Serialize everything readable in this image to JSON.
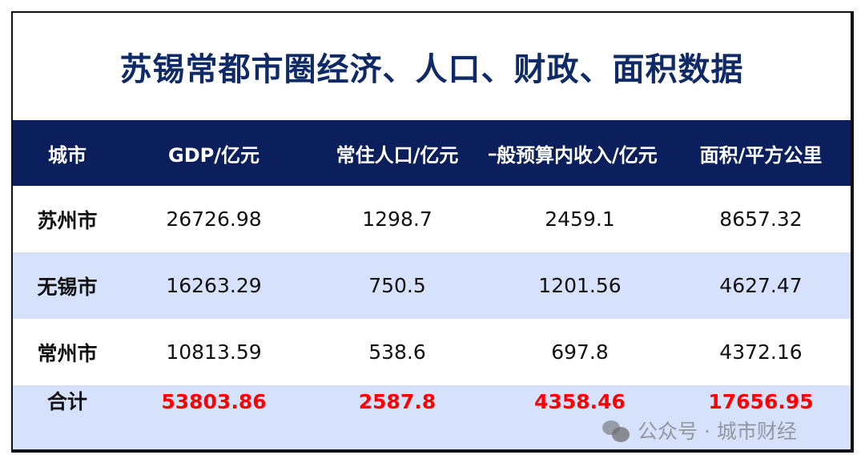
{
  "title": "苏锡常都市圈经济、人口、财政、面积数据",
  "headers": [
    "城市",
    "GDP/亿元",
    "常住人口/亿元",
    "一般预算内收入/亿元",
    "面积/平方公里"
  ],
  "rows": [
    {
      "city": "苏州市",
      "gdp": "26726.98",
      "population": "1298.7",
      "budget": "2459.1",
      "area": "8657.32"
    },
    {
      "city": "无锡市",
      "gdp": "16263.29",
      "population": "750.5",
      "budget": "1201.56",
      "area": "4627.47"
    },
    {
      "city": "常州市",
      "gdp": "10813.59",
      "population": "538.6",
      "budget": "697.8",
      "area": "4372.16"
    }
  ],
  "total": {
    "city": "合计",
    "gdp": "53803.86",
    "population": "2587.8",
    "budget": "4358.46",
    "area": "17656.95"
  },
  "watermark": {
    "icon": "wechat-icon",
    "text": "公众号 · 城市财经"
  },
  "colors": {
    "header_bg": "#0a1f5c",
    "title": "#0f2a66",
    "alt_row": "#d6e2fb",
    "total_value": "#ff0000"
  }
}
